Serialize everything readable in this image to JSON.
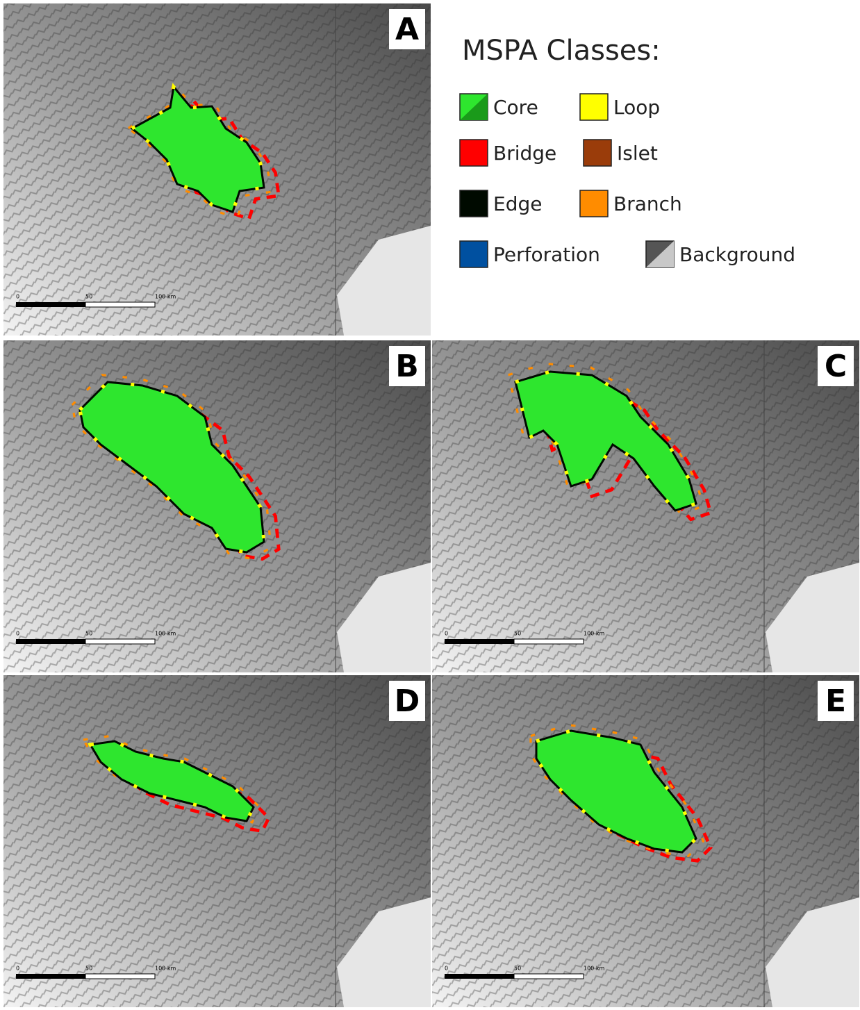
{
  "panels": [
    {
      "label": "A",
      "scale_labels": [
        "0",
        "50",
        "100 km"
      ]
    },
    {
      "label": "B",
      "scale_labels": [
        "0",
        "50",
        "100 km"
      ]
    },
    {
      "label": "C",
      "scale_labels": [
        "0",
        "50",
        "100 km"
      ]
    },
    {
      "label": "D",
      "scale_labels": [
        "0",
        "50",
        "100 km"
      ]
    },
    {
      "label": "E",
      "scale_labels": [
        "0",
        "50",
        "100 km"
      ]
    }
  ],
  "legend": {
    "title": "MSPA Classes:",
    "items": [
      {
        "name": "Core",
        "color": "#2ee62e",
        "color2": "#1a9a1a"
      },
      {
        "name": "Loop",
        "color": "#ffff00"
      },
      {
        "name": "Bridge",
        "color": "#ff0000"
      },
      {
        "name": "Islet",
        "color": "#9a3c0a"
      },
      {
        "name": "Edge",
        "color": "#000a00"
      },
      {
        "name": "Branch",
        "color": "#ff8c00"
      },
      {
        "name": "Perforation",
        "color": "#0050a0"
      },
      {
        "name": "Background",
        "color": "#555555",
        "color2": "#c8c8c8"
      }
    ]
  }
}
